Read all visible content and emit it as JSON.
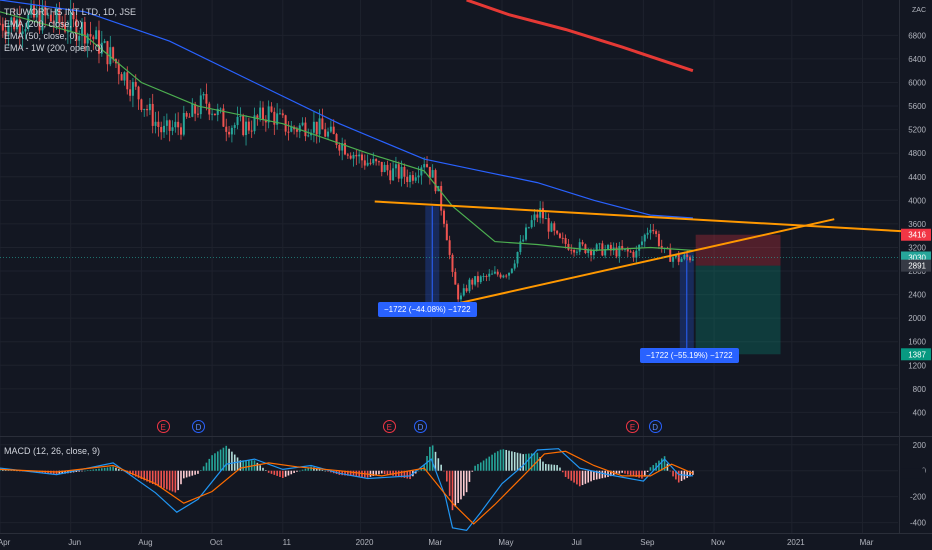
{
  "legend": {
    "symbol": "TRUWORTHS INT LTD, 1D, JSE",
    "ema1": "EMA (200, close, 0)",
    "ema2": "EMA (50, close, 0)",
    "ema3": "EMA - 1W (200, open, 0)"
  },
  "macd_label": "MACD (12, 26, close, 9)",
  "currency": "ZAC",
  "colors": {
    "background": "#131722",
    "up_candle": "#26a69a",
    "down_candle": "#ef5350",
    "ema200": "#2962ff",
    "ema50": "#4caf50",
    "ema_weekly": "#e53935",
    "trendline": "#ff9800",
    "macd_line": "#2196f3",
    "signal_line": "#ff6d00"
  },
  "price_tags": {
    "stop": "3416",
    "last": "3030",
    "entry": "2891",
    "target": "1387"
  },
  "callouts": {
    "left": "−1722 (−44.08%) −1722",
    "right": "−1722 (−55.19%) −1722"
  },
  "events": [
    {
      "type": "E",
      "label": "E"
    },
    {
      "type": "D",
      "label": "D"
    },
    {
      "type": "E",
      "label": "E"
    },
    {
      "type": "D",
      "label": "D"
    },
    {
      "type": "E",
      "label": "E"
    },
    {
      "type": "D",
      "label": "D"
    }
  ],
  "chart_data": [
    {
      "type": "candlestick",
      "title": "TRUWORTHS INT LTD, 1D, JSE",
      "y_ticks": [
        400,
        800,
        1200,
        1600,
        2000,
        2400,
        2800,
        3200,
        3600,
        4000,
        4400,
        4800,
        5200,
        5600,
        6000,
        6400,
        6800
      ],
      "ylim": [
        0,
        7400
      ],
      "x_ticks": [
        "Apr",
        "Jun",
        "Aug",
        "Oct",
        "11",
        "2020",
        "Mar",
        "May",
        "Jul",
        "Sep",
        "Nov",
        "2021",
        "Mar"
      ],
      "x_tick_index": [
        0,
        50,
        100,
        150,
        200,
        255,
        305,
        355,
        405,
        455,
        505,
        560,
        610
      ],
      "price_path": [
        [
          0,
          7000
        ],
        [
          30,
          7100
        ],
        [
          60,
          6900
        ],
        [
          80,
          6400
        ],
        [
          100,
          5700
        ],
        [
          115,
          5150
        ],
        [
          130,
          5300
        ],
        [
          145,
          5700
        ],
        [
          160,
          5300
        ],
        [
          175,
          5250
        ],
        [
          190,
          5500
        ],
        [
          205,
          5200
        ],
        [
          220,
          5300
        ],
        [
          240,
          5000
        ],
        [
          255,
          4700
        ],
        [
          275,
          4500
        ],
        [
          290,
          4400
        ],
        [
          300,
          4700
        ],
        [
          308,
          4300
        ],
        [
          315,
          3600
        ],
        [
          320,
          2700
        ],
        [
          325,
          2300
        ],
        [
          332,
          2600
        ],
        [
          345,
          2700
        ],
        [
          360,
          2800
        ],
        [
          375,
          3600
        ],
        [
          382,
          3800
        ],
        [
          395,
          3300
        ],
        [
          410,
          3200
        ],
        [
          430,
          3150
        ],
        [
          450,
          3100
        ],
        [
          460,
          3600
        ],
        [
          470,
          3100
        ],
        [
          480,
          3000
        ],
        [
          490,
          3050
        ]
      ],
      "ema200": [
        [
          0,
          7400
        ],
        [
          60,
          7200
        ],
        [
          120,
          6700
        ],
        [
          180,
          6000
        ],
        [
          240,
          5300
        ],
        [
          300,
          4700
        ],
        [
          340,
          4500
        ],
        [
          380,
          4300
        ],
        [
          420,
          4000
        ],
        [
          460,
          3750
        ],
        [
          490,
          3700
        ]
      ],
      "ema50": [
        [
          0,
          7200
        ],
        [
          60,
          6800
        ],
        [
          100,
          6000
        ],
        [
          140,
          5600
        ],
        [
          200,
          5300
        ],
        [
          260,
          4800
        ],
        [
          300,
          4500
        ],
        [
          320,
          3900
        ],
        [
          350,
          3300
        ],
        [
          380,
          3250
        ],
        [
          420,
          3150
        ],
        [
          460,
          3200
        ],
        [
          490,
          3150
        ]
      ],
      "ema_weekly": [
        [
          330,
          7400
        ],
        [
          360,
          7150
        ],
        [
          400,
          6900
        ],
        [
          440,
          6600
        ],
        [
          490,
          6200
        ]
      ],
      "trendlines": [
        {
          "from": [
            265,
            3980
          ],
          "to": [
            650,
            3460
          ]
        },
        {
          "from": [
            305,
            2150
          ],
          "to": [
            590,
            3680
          ]
        }
      ],
      "measures": [
        {
          "x": 305,
          "high": 3900,
          "low": 2150,
          "change": -1722,
          "percent": -44.08
        },
        {
          "x": 485,
          "high": 3120,
          "low": 1400,
          "change": -1722,
          "percent": -55.19
        }
      ],
      "position": {
        "entry": 2891,
        "stop": 3416,
        "target": 1387,
        "last": 3030
      }
    },
    {
      "type": "macd",
      "title": "MACD (12, 26, close, 9)",
      "y_ticks": [
        -400,
        -200,
        0,
        200
      ],
      "ylim": [
        -480,
        260
      ],
      "macd": [
        [
          0,
          20
        ],
        [
          40,
          -30
        ],
        [
          80,
          60
        ],
        [
          110,
          -170
        ],
        [
          125,
          -320
        ],
        [
          140,
          -220
        ],
        [
          160,
          50
        ],
        [
          180,
          90
        ],
        [
          200,
          10
        ],
        [
          220,
          40
        ],
        [
          240,
          -20
        ],
        [
          260,
          -60
        ],
        [
          290,
          -40
        ],
        [
          305,
          90
        ],
        [
          315,
          -200
        ],
        [
          320,
          -440
        ],
        [
          330,
          -460
        ],
        [
          340,
          -320
        ],
        [
          355,
          -100
        ],
        [
          370,
          40
        ],
        [
          380,
          160
        ],
        [
          395,
          170
        ],
        [
          410,
          20
        ],
        [
          430,
          -30
        ],
        [
          455,
          -80
        ],
        [
          470,
          90
        ],
        [
          480,
          -30
        ],
        [
          490,
          -40
        ]
      ],
      "signal": [
        [
          0,
          10
        ],
        [
          40,
          -10
        ],
        [
          80,
          40
        ],
        [
          110,
          -100
        ],
        [
          130,
          -250
        ],
        [
          150,
          -160
        ],
        [
          170,
          20
        ],
        [
          190,
          60
        ],
        [
          210,
          30
        ],
        [
          240,
          0
        ],
        [
          270,
          -40
        ],
        [
          300,
          20
        ],
        [
          320,
          -250
        ],
        [
          335,
          -410
        ],
        [
          350,
          -260
        ],
        [
          370,
          -40
        ],
        [
          385,
          130
        ],
        [
          400,
          150
        ],
        [
          420,
          40
        ],
        [
          440,
          -40
        ],
        [
          460,
          -40
        ],
        [
          475,
          50
        ],
        [
          490,
          -20
        ]
      ]
    }
  ]
}
